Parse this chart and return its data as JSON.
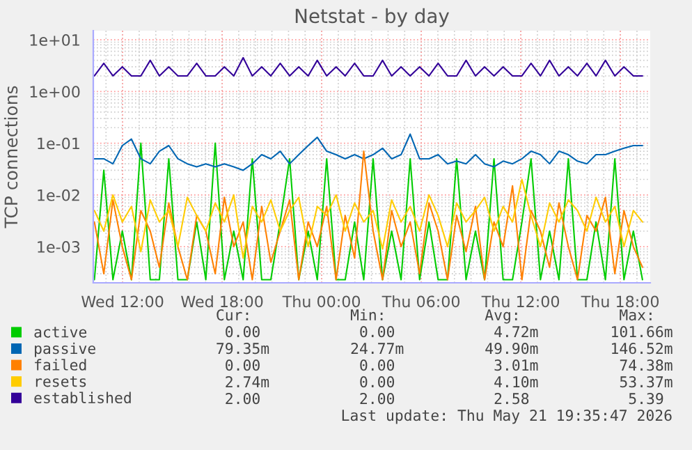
{
  "chart_data": {
    "type": "line",
    "title": "Netstat - by day",
    "ylabel": "TCP connections",
    "x": [
      "2026-05-20T10:18",
      "2026-05-20T10:52",
      "2026-05-20T11:25",
      "2026-05-20T11:59",
      "2026-05-20T12:32",
      "2026-05-20T13:06",
      "2026-05-20T13:40",
      "2026-05-20T14:13",
      "2026-05-20T14:47",
      "2026-05-20T15:20",
      "2026-05-20T15:54",
      "2026-05-20T16:28",
      "2026-05-20T17:01",
      "2026-05-20T17:35",
      "2026-05-20T18:08",
      "2026-05-20T18:42",
      "2026-05-20T19:16",
      "2026-05-20T19:49",
      "2026-05-20T20:23",
      "2026-05-20T20:56",
      "2026-05-20T21:30",
      "2026-05-20T22:04",
      "2026-05-20T22:37",
      "2026-05-20T23:11",
      "2026-05-20T23:44",
      "2026-05-21T00:18",
      "2026-05-21T00:52",
      "2026-05-21T01:25",
      "2026-05-21T01:59",
      "2026-05-21T02:32",
      "2026-05-21T03:06",
      "2026-05-21T03:40",
      "2026-05-21T04:13",
      "2026-05-21T04:47",
      "2026-05-21T05:20",
      "2026-05-21T05:54",
      "2026-05-21T06:28",
      "2026-05-21T07:01",
      "2026-05-21T07:35",
      "2026-05-21T08:08",
      "2026-05-21T08:42",
      "2026-05-21T09:16",
      "2026-05-21T09:49",
      "2026-05-21T10:23",
      "2026-05-21T10:56",
      "2026-05-21T11:30",
      "2026-05-21T12:04",
      "2026-05-21T12:37",
      "2026-05-21T13:11",
      "2026-05-21T13:44",
      "2026-05-21T14:18",
      "2026-05-21T14:52",
      "2026-05-21T15:25",
      "2026-05-21T15:59",
      "2026-05-21T16:32",
      "2026-05-21T17:06",
      "2026-05-21T17:40",
      "2026-05-21T18:13",
      "2026-05-21T18:47",
      "2026-05-21T19:20"
    ],
    "series": [
      {
        "name": "active",
        "color": "#00cc00",
        "values": [
          0.00023,
          0.03,
          0.00023,
          0.002,
          0.00023,
          0.1,
          0.00023,
          0.00023,
          0.05,
          0.00023,
          0.00023,
          0.003,
          0.00023,
          0.1,
          0.00023,
          0.002,
          0.00023,
          0.05,
          0.00023,
          0.00023,
          0.003,
          0.05,
          0.00023,
          0.002,
          0.00023,
          0.05,
          0.00023,
          0.00023,
          0.003,
          0.00023,
          0.05,
          0.00023,
          0.002,
          0.00023,
          0.05,
          0.00023,
          0.003,
          0.00023,
          0.00023,
          0.05,
          0.00023,
          0.002,
          0.00023,
          0.05,
          0.00023,
          0.00023,
          0.003,
          0.05,
          0.00023,
          0.002,
          0.00023,
          0.05,
          0.00023,
          0.00023,
          0.003,
          0.00023,
          0.05,
          0.00023,
          0.002,
          0.00023
        ]
      },
      {
        "name": "passive",
        "color": "#0066b3",
        "values": [
          0.05,
          0.05,
          0.04,
          0.09,
          0.12,
          0.05,
          0.04,
          0.07,
          0.09,
          0.05,
          0.04,
          0.035,
          0.04,
          0.035,
          0.04,
          0.035,
          0.03,
          0.04,
          0.06,
          0.05,
          0.07,
          0.04,
          0.06,
          0.09,
          0.13,
          0.07,
          0.06,
          0.05,
          0.06,
          0.05,
          0.06,
          0.08,
          0.05,
          0.06,
          0.15,
          0.05,
          0.05,
          0.06,
          0.04,
          0.045,
          0.04,
          0.06,
          0.04,
          0.035,
          0.045,
          0.04,
          0.05,
          0.07,
          0.06,
          0.04,
          0.07,
          0.06,
          0.045,
          0.04,
          0.06,
          0.06,
          0.07,
          0.08,
          0.09,
          0.09
        ]
      },
      {
        "name": "failed",
        "color": "#ff8000",
        "values": [
          0.003,
          0.0003,
          0.008,
          0.001,
          0.00023,
          0.005,
          0.002,
          0.0004,
          0.007,
          0.001,
          0.00023,
          0.004,
          0.002,
          0.0003,
          0.009,
          0.001,
          0.003,
          0.00023,
          0.006,
          0.0005,
          0.002,
          0.008,
          0.00023,
          0.003,
          0.001,
          0.006,
          0.00023,
          0.004,
          0.0006,
          0.07,
          0.002,
          0.00023,
          0.005,
          0.001,
          0.003,
          0.0003,
          0.007,
          0.002,
          0.00023,
          0.004,
          0.0008,
          0.006,
          0.00023,
          0.003,
          0.001,
          0.015,
          0.00023,
          0.005,
          0.002,
          0.0004,
          0.007,
          0.001,
          0.00023,
          0.004,
          0.002,
          0.009,
          0.0003,
          0.005,
          0.001,
          0.0004
        ]
      },
      {
        "name": "resets",
        "color": "#ffcc00",
        "values": [
          0.005,
          0.002,
          0.01,
          0.003,
          0.006,
          0.0008,
          0.008,
          0.003,
          0.005,
          0.001,
          0.009,
          0.004,
          0.002,
          0.007,
          0.003,
          0.01,
          0.0006,
          0.006,
          0.003,
          0.008,
          0.002,
          0.005,
          0.009,
          0.001,
          0.006,
          0.004,
          0.01,
          0.002,
          0.007,
          0.003,
          0.005,
          0.0009,
          0.008,
          0.003,
          0.006,
          0.002,
          0.01,
          0.004,
          0.001,
          0.007,
          0.003,
          0.005,
          0.009,
          0.002,
          0.006,
          0.003,
          0.02,
          0.004,
          0.001,
          0.007,
          0.003,
          0.008,
          0.005,
          0.002,
          0.009,
          0.003,
          0.006,
          0.001,
          0.005,
          0.003
        ]
      },
      {
        "name": "established",
        "color": "#330099",
        "values": [
          2,
          3.5,
          2,
          3,
          2,
          2,
          4,
          2,
          3,
          2,
          2,
          3.5,
          2,
          2,
          3,
          2,
          4.5,
          2,
          3,
          2,
          3.5,
          2,
          3,
          2,
          4,
          2,
          3,
          2,
          3.5,
          2,
          2,
          4,
          2,
          3,
          2,
          3,
          2,
          3.5,
          2,
          2,
          4,
          2,
          3,
          2,
          3,
          2,
          2,
          3.5,
          2,
          4,
          2,
          3,
          2,
          3.5,
          2,
          4,
          2,
          3,
          2,
          2
        ]
      }
    ],
    "xlim": [
      "2026-05-20T10:14",
      "2026-05-21T19:48"
    ],
    "xticks": [
      {
        "value": "2026-05-20T12:00",
        "label": "Wed 12:00"
      },
      {
        "value": "2026-05-20T18:00",
        "label": "Wed 18:00"
      },
      {
        "value": "2026-05-21T00:00",
        "label": "Thu 00:00"
      },
      {
        "value": "2026-05-21T06:00",
        "label": "Thu 06:00"
      },
      {
        "value": "2026-05-21T12:00",
        "label": "Thu 12:00"
      },
      {
        "value": "2026-05-21T18:00",
        "label": "Thu 18:00"
      }
    ],
    "ylim": [
      0.0002,
      15
    ],
    "yticks": [
      {
        "value": 0.001,
        "label": "1e-03"
      },
      {
        "value": 0.01,
        "label": "1e-02"
      },
      {
        "value": 0.1,
        "label": "1e-01"
      },
      {
        "value": 1,
        "label": "1e+00"
      },
      {
        "value": 10,
        "label": "1e+01"
      }
    ],
    "log": "y",
    "grid": true,
    "legend": "bottom left",
    "line_style": "solid",
    "annotations": [
      "         Cur:           Min:           Avg:           Max:  ",
      "          0.00           0.00           4.72m        101.66m",
      "         79.35m         24.77m         49.90m        146.52m",
      "          0.00           0.00           3.01m         74.38m",
      "          2.74m          0.00           4.10m         53.37m",
      "          2.00           2.00           2.58           5.39 ",
      "Last update: Thu May 21 19:35:47 2026"
    ]
  }
}
